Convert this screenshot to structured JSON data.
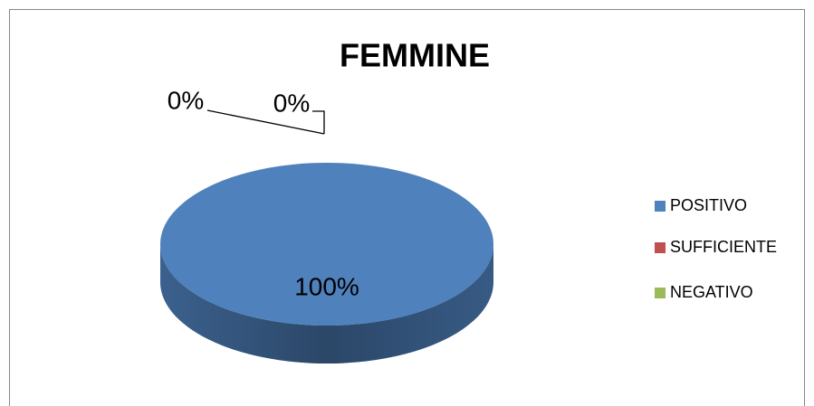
{
  "chart_data": {
    "type": "pie3d",
    "title": "FEMMINE",
    "categories": [
      "POSITIVO",
      "SUFFICIENTE",
      "NEGATIVO"
    ],
    "values": [
      100,
      0,
      0
    ],
    "value_labels": [
      "100%",
      "0%",
      "0%"
    ],
    "colors": [
      "#4f81bd",
      "#c0504d",
      "#9bbb59"
    ],
    "legend": "right"
  }
}
